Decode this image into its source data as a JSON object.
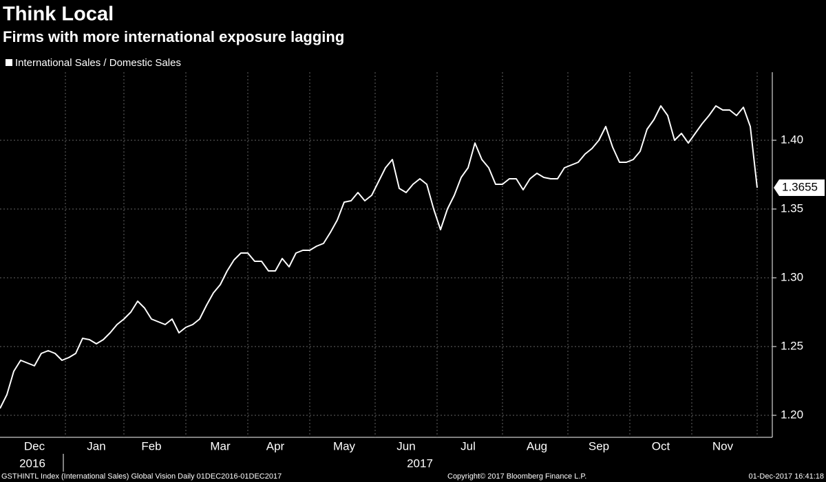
{
  "chart_data": {
    "type": "line",
    "title": "Think Local",
    "subtitle": "Firms with more international exposure lagging",
    "categories": [
      null,
      null,
      null,
      null,
      null,
      "Dec",
      null,
      null,
      null,
      null,
      null,
      null,
      null,
      null,
      "Jan",
      null,
      null,
      null,
      null,
      null,
      null,
      null,
      "Feb",
      null,
      null,
      null,
      null,
      null,
      null,
      null,
      null,
      null,
      "Mar",
      null,
      null,
      null,
      null,
      null,
      null,
      null,
      "Apr",
      null,
      null,
      null,
      null,
      null,
      null,
      null,
      null,
      null,
      "May",
      null,
      null,
      null,
      null,
      null,
      null,
      null,
      null,
      "Jun",
      null,
      null,
      null,
      null,
      null,
      null,
      null,
      null,
      "Jul",
      null,
      null,
      null,
      null,
      null,
      null,
      null,
      null,
      null,
      "Aug",
      null,
      null,
      null,
      null,
      null,
      null,
      null,
      null,
      "Sep",
      null,
      null,
      null,
      null,
      null,
      null,
      null,
      null,
      "Oct",
      null,
      null,
      null,
      null,
      null,
      null,
      null,
      null,
      "Nov",
      null,
      null,
      null,
      null,
      null
    ],
    "year_labels": [
      "2016",
      "2017"
    ],
    "series": [
      {
        "name": "International Sales / Domestic Sales",
        "color": "#ffffff",
        "values": [
          1.205,
          1.215,
          1.232,
          1.24,
          1.238,
          1.236,
          1.245,
          1.247,
          1.245,
          1.24,
          1.242,
          1.245,
          1.256,
          1.255,
          1.252,
          1.255,
          1.26,
          1.266,
          1.27,
          1.275,
          1.283,
          1.278,
          1.27,
          1.268,
          1.266,
          1.27,
          1.26,
          1.264,
          1.266,
          1.27,
          1.28,
          1.289,
          1.295,
          1.305,
          1.313,
          1.318,
          1.318,
          1.312,
          1.312,
          1.305,
          1.305,
          1.314,
          1.308,
          1.318,
          1.32,
          1.32,
          1.323,
          1.325,
          1.333,
          1.342,
          1.355,
          1.356,
          1.362,
          1.356,
          1.36,
          1.37,
          1.38,
          1.386,
          1.365,
          1.362,
          1.368,
          1.372,
          1.368,
          1.35,
          1.335,
          1.35,
          1.36,
          1.373,
          1.38,
          1.398,
          1.386,
          1.38,
          1.368,
          1.368,
          1.372,
          1.372,
          1.364,
          1.372,
          1.376,
          1.373,
          1.372,
          1.372,
          1.38,
          1.382,
          1.384,
          1.39,
          1.394,
          1.4,
          1.41,
          1.395,
          1.384,
          1.384,
          1.386,
          1.392,
          1.408,
          1.415,
          1.425,
          1.418,
          1.4,
          1.405,
          1.398,
          1.405,
          1.412,
          1.418,
          1.425,
          1.422,
          1.422,
          1.418,
          1.424,
          1.41,
          1.3655
        ]
      }
    ],
    "ylim": [
      1.185,
      1.447
    ],
    "yticks": [
      {
        "value": 1.2,
        "label": "1.20"
      },
      {
        "value": 1.25,
        "label": "1.25"
      },
      {
        "value": 1.3,
        "label": "1.30"
      },
      {
        "value": 1.35,
        "label": "1.35"
      },
      {
        "value": 1.4,
        "label": "1.40"
      }
    ],
    "grid": true,
    "footer": {
      "source": "GSTHINTL Index (International Sales) Global Vision  Daily 01DEC2016-01DEC2017",
      "copyright": "Copyright© 2017 Bloomberg Finance L.P.",
      "timestamp": "01-Dec-2017  16:41:18"
    }
  }
}
